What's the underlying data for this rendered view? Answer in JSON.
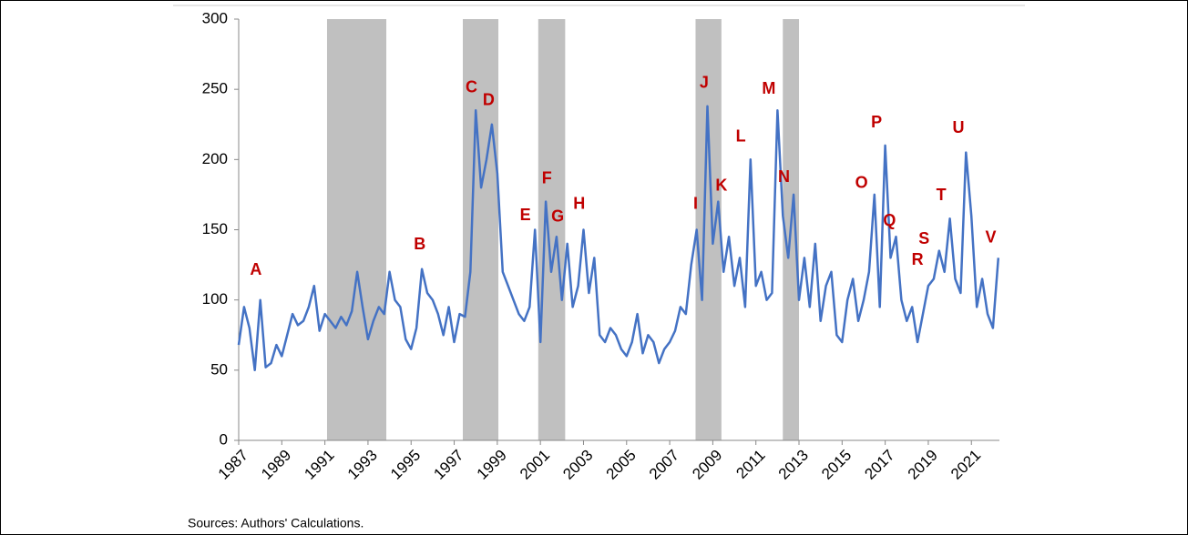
{
  "chart_data": {
    "type": "line",
    "source": "Sources: Authors' Calculations.",
    "ylim": [
      0,
      300
    ],
    "yticks": [
      0,
      50,
      100,
      150,
      200,
      250,
      300
    ],
    "xlim": [
      1987,
      2022.3
    ],
    "xticks": [
      1987,
      1989,
      1991,
      1993,
      1995,
      1997,
      1999,
      2001,
      2003,
      2005,
      2007,
      2009,
      2011,
      2013,
      2015,
      2017,
      2019,
      2021
    ],
    "shaded": [
      [
        1991.1,
        1993.85
      ],
      [
        1997.4,
        1999.05
      ],
      [
        2000.9,
        2002.15
      ],
      [
        2008.2,
        2009.4
      ],
      [
        2012.25,
        2013.0
      ]
    ],
    "shade_color": "#c0c0c0",
    "series": [
      {
        "color": "#4472c4",
        "x": [
          1987,
          1987.25,
          1987.5,
          1987.75,
          1988,
          1988.25,
          1988.5,
          1988.75,
          1989,
          1989.25,
          1989.5,
          1989.75,
          1990,
          1990.25,
          1990.5,
          1990.75,
          1991,
          1991.25,
          1991.5,
          1991.75,
          1992,
          1992.25,
          1992.5,
          1992.75,
          1993,
          1993.25,
          1993.5,
          1993.75,
          1994,
          1994.25,
          1994.5,
          1994.75,
          1995,
          1995.25,
          1995.5,
          1995.75,
          1996,
          1996.25,
          1996.5,
          1996.75,
          1997,
          1997.25,
          1997.5,
          1997.75,
          1998,
          1998.25,
          1998.5,
          1998.75,
          1999,
          1999.25,
          1999.5,
          1999.75,
          2000,
          2000.25,
          2000.5,
          2000.75,
          2001,
          2001.25,
          2001.5,
          2001.75,
          2002,
          2002.25,
          2002.5,
          2002.75,
          2003,
          2003.25,
          2003.5,
          2003.75,
          2004,
          2004.25,
          2004.5,
          2004.75,
          2005,
          2005.25,
          2005.5,
          2005.75,
          2006,
          2006.25,
          2006.5,
          2006.75,
          2007,
          2007.25,
          2007.5,
          2007.75,
          2008,
          2008.25,
          2008.5,
          2008.75,
          2009,
          2009.25,
          2009.5,
          2009.75,
          2010,
          2010.25,
          2010.5,
          2010.75,
          2011,
          2011.25,
          2011.5,
          2011.75,
          2012,
          2012.25,
          2012.5,
          2012.75,
          2013,
          2013.25,
          2013.5,
          2013.75,
          2014,
          2014.25,
          2014.5,
          2014.75,
          2015,
          2015.25,
          2015.5,
          2015.75,
          2016,
          2016.25,
          2016.5,
          2016.75,
          2017,
          2017.25,
          2017.5,
          2017.75,
          2018,
          2018.25,
          2018.5,
          2018.75,
          2019,
          2019.25,
          2019.5,
          2019.75,
          2020,
          2020.25,
          2020.5,
          2020.75,
          2021,
          2021.25,
          2021.5,
          2021.75,
          2022,
          2022.25
        ],
        "values": [
          68,
          95,
          80,
          50,
          100,
          52,
          55,
          68,
          60,
          75,
          90,
          82,
          85,
          95,
          110,
          78,
          90,
          85,
          80,
          88,
          82,
          92,
          120,
          95,
          72,
          85,
          95,
          90,
          120,
          100,
          95,
          72,
          65,
          80,
          122,
          105,
          100,
          90,
          75,
          95,
          70,
          90,
          88,
          120,
          235,
          180,
          200,
          225,
          190,
          120,
          110,
          100,
          90,
          85,
          95,
          150,
          70,
          170,
          120,
          145,
          100,
          140,
          95,
          110,
          150,
          105,
          130,
          75,
          70,
          80,
          75,
          65,
          60,
          70,
          90,
          62,
          75,
          70,
          55,
          65,
          70,
          78,
          95,
          90,
          125,
          150,
          100,
          238,
          140,
          170,
          120,
          145,
          110,
          130,
          95,
          200,
          110,
          120,
          100,
          105,
          235,
          160,
          130,
          175,
          100,
          130,
          95,
          140,
          85,
          110,
          120,
          75,
          70,
          100,
          115,
          85,
          100,
          120,
          175,
          95,
          210,
          130,
          145,
          100,
          85,
          95,
          70,
          90,
          110,
          115,
          135,
          120,
          158,
          115,
          105,
          205,
          160,
          95,
          115,
          90,
          80,
          130
        ]
      }
    ],
    "annotations": [
      {
        "label": "A",
        "x": 1987.8,
        "y": 121
      },
      {
        "label": "B",
        "x": 1995.4,
        "y": 139
      },
      {
        "label": "C",
        "x": 1997.8,
        "y": 251
      },
      {
        "label": "D",
        "x": 1998.6,
        "y": 242
      },
      {
        "label": "E",
        "x": 2000.3,
        "y": 160
      },
      {
        "label": "F",
        "x": 2001.3,
        "y": 186
      },
      {
        "label": "G",
        "x": 2001.8,
        "y": 159
      },
      {
        "label": "H",
        "x": 2002.8,
        "y": 168
      },
      {
        "label": "I",
        "x": 2008.2,
        "y": 168
      },
      {
        "label": "J",
        "x": 2008.6,
        "y": 254
      },
      {
        "label": "K",
        "x": 2009.4,
        "y": 181
      },
      {
        "label": "L",
        "x": 2010.3,
        "y": 216
      },
      {
        "label": "M",
        "x": 2011.6,
        "y": 250
      },
      {
        "label": "N",
        "x": 2012.3,
        "y": 187
      },
      {
        "label": "O",
        "x": 2015.9,
        "y": 183
      },
      {
        "label": "P",
        "x": 2016.6,
        "y": 226
      },
      {
        "label": "Q",
        "x": 2017.2,
        "y": 156
      },
      {
        "label": "R",
        "x": 2018.5,
        "y": 128
      },
      {
        "label": "S",
        "x": 2018.8,
        "y": 143
      },
      {
        "label": "T",
        "x": 2019.6,
        "y": 174
      },
      {
        "label": "U",
        "x": 2020.4,
        "y": 222
      },
      {
        "label": "V",
        "x": 2021.9,
        "y": 144
      }
    ],
    "annotation_color": "#c00000"
  }
}
